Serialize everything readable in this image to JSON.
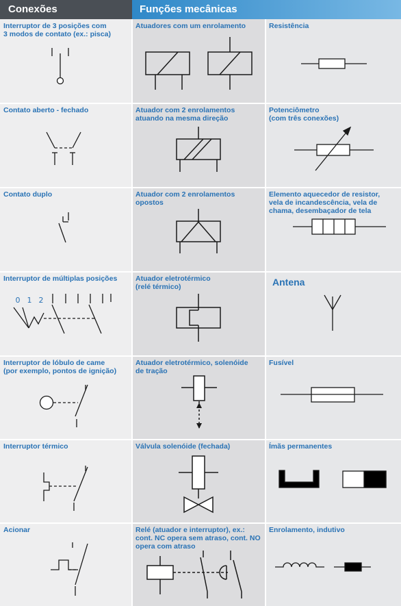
{
  "headers": {
    "connections": "Conexões",
    "mechanical_functions": "Funções mecânicas"
  },
  "cells": {
    "r0c0": "Interruptor de 3 posições com\n3 modos de contato (ex.: pisca)",
    "r0c1": "Atuadores com um enrolamento",
    "r0c2": "Resistência",
    "r1c0": "Contato aberto - fechado",
    "r1c1": "Atuador com 2 enrolamentos\natuando na mesma direção",
    "r1c2": "Potenciômetro\n(com três conexões)",
    "r2c0": "Contato duplo",
    "r2c1": "Atuador com 2 enrolamentos\nopostos",
    "r2c2": "Elemento aquecedor de resistor,\nvela de incandescência, vela de\nchama, desembaçador de tela",
    "r3c0": "Interruptor de múltiplas posições",
    "r3c1": "Atuador eletrotérmico\n(relé térmico)",
    "r3c2": "Antena",
    "r4c0": "Interruptor de lóbulo de came\n(por exemplo, pontos de ignição)",
    "r4c1": "Atuador eletrotérmico, solenóide\nde tração",
    "r4c2": "Fusível",
    "r5c0": "Interruptor térmico",
    "r5c1": "Válvula solenóide (fechada)",
    "r5c2": "Ímãs permanentes",
    "r6c0": "Acionar",
    "r6c1": "Relé (atuador e interruptor), ex.:\ncont. NC opera sem atraso, cont. NO\nopera com atraso",
    "r6c2": "Enrolamento, indutivo"
  },
  "position_labels": [
    "0",
    "1",
    "2"
  ],
  "colors": {
    "header_dark": "#4a4f55",
    "header_blue": "#2f88c8",
    "label_blue": "#2a73b5",
    "line": "#1a1a1a"
  }
}
